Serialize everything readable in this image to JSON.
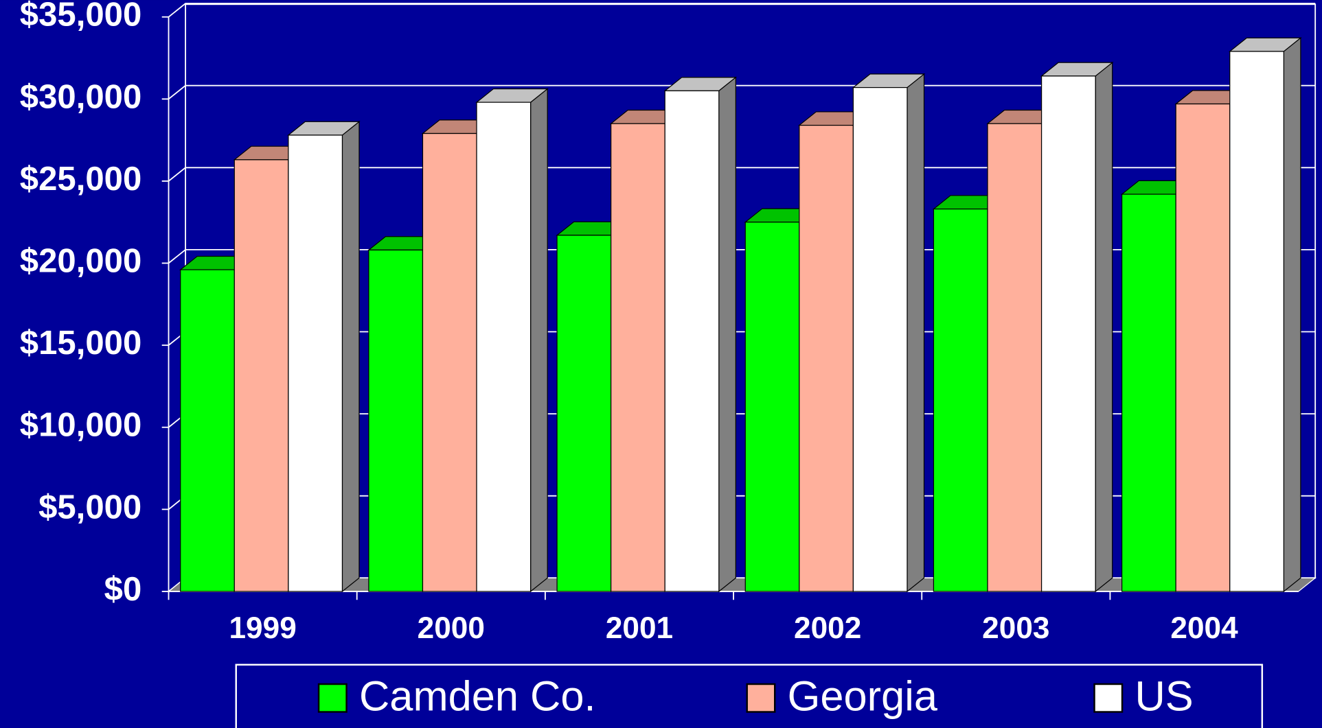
{
  "chart_data": {
    "type": "bar3d",
    "categories": [
      "1999",
      "2000",
      "2001",
      "2002",
      "2003",
      "2004"
    ],
    "series": [
      {
        "name": "Camden Co.",
        "color": "#00ff00",
        "values": [
          19600,
          20800,
          21700,
          22500,
          23300,
          24200
        ]
      },
      {
        "name": "Georgia",
        "color": "#ffb09c",
        "values": [
          26300,
          27900,
          28500,
          28400,
          28500,
          29700
        ]
      },
      {
        "name": "US",
        "color": "#ffffff",
        "values": [
          27800,
          29800,
          30500,
          30700,
          31400,
          32900
        ]
      }
    ],
    "ylim": [
      0,
      35000
    ],
    "yticks": [
      {
        "value": 0,
        "label": "$0"
      },
      {
        "value": 5000,
        "label": "$5,000"
      },
      {
        "value": 10000,
        "label": "$10,000"
      },
      {
        "value": 15000,
        "label": "$15,000"
      },
      {
        "value": 20000,
        "label": "$20,000"
      },
      {
        "value": 25000,
        "label": "$25,000"
      },
      {
        "value": 30000,
        "label": "$30,000"
      },
      {
        "value": 35000,
        "label": "$35,000"
      }
    ],
    "grid": true,
    "legend": "bottom"
  }
}
